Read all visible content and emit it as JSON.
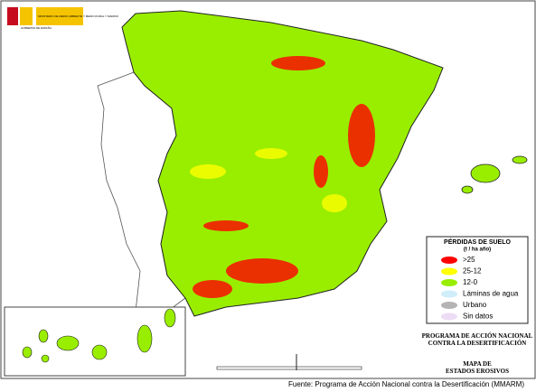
{
  "logo": {
    "government": "GOBIERNO DE ESPAÑA",
    "ministry": "MINISTERIO DE MEDIO AMBIENTE Y MEDIO RURAL Y MARINO"
  },
  "legend": {
    "title": "PÉRDIDAS DE SUELO",
    "subtitle": "(t / ha año)",
    "items": [
      {
        "label": ">25",
        "color": "#ff0000"
      },
      {
        "label": "25-12",
        "color": "#ffff00"
      },
      {
        "label": "12-0",
        "color": "#99ee00"
      },
      {
        "label": "Láminas de agua",
        "color": "#cfeefa"
      },
      {
        "label": "Urbano",
        "color": "#b4b4b4"
      },
      {
        "label": "Sin datos",
        "color": "#eedcf5"
      }
    ]
  },
  "program": "PROGRAMA DE ACCIÓN NACIONAL CONTRA LA DESERTIFICACIÓN",
  "map_title": "MAPA DE ESTADOS EROSIVOS",
  "source": "Fuente: Programa de Acción Nacional contra la Desertificación (MMARM)"
}
